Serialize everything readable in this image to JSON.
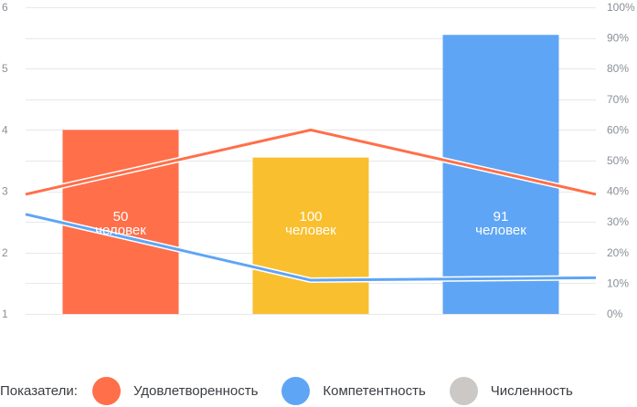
{
  "chart_data": {
    "type": "bar",
    "categories": [
      "",
      "",
      ""
    ],
    "bars": {
      "values": [
        4.0,
        3.55,
        5.55
      ],
      "colors": [
        "#ff6f4a",
        "#f9bf2e",
        "#5fa5f5"
      ],
      "labels": [
        {
          "value": "50",
          "unit": "человек"
        },
        {
          "value": "100",
          "unit": "человек"
        },
        {
          "value": "91",
          "unit": "человек"
        }
      ]
    },
    "y_left": {
      "ylim": [
        1,
        6
      ],
      "ticks": [
        "1",
        "2",
        "3",
        "4",
        "5",
        "6"
      ]
    },
    "y_right": {
      "ylim": [
        0,
        100
      ],
      "ticks": [
        "0%",
        "10%",
        "20%",
        "30%",
        "40%",
        "50%",
        "60%",
        "70%",
        "80%",
        "90%",
        "100%"
      ]
    },
    "series": [
      {
        "name": "Удовлетворенность",
        "axis": "right",
        "color": "#ff6f4a",
        "x": [
          -0.5,
          1.0,
          2.5
        ],
        "values": [
          39,
          60,
          39
        ]
      },
      {
        "name": "Компетентность",
        "axis": "right",
        "color": "#5fa5f5",
        "x": [
          -0.5,
          1.0,
          2.5
        ],
        "values": [
          32.5,
          11,
          11.8
        ]
      }
    ],
    "grid": true,
    "legend": {
      "title": "Показатели:",
      "items": [
        {
          "label": "Удовлетворенность",
          "color": "#ff6f4a"
        },
        {
          "label": "Компетентность",
          "color": "#5fa5f5"
        },
        {
          "label": "Численность",
          "color": "#cbc8c6"
        }
      ]
    }
  }
}
